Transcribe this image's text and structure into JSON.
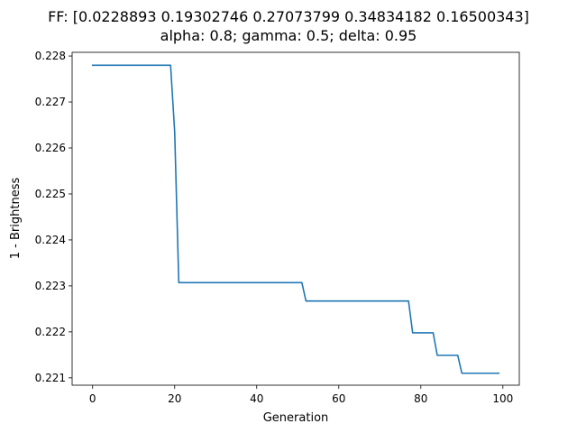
{
  "chart_data": {
    "type": "line",
    "title": "FF: [0.0228893  0.19302746 0.27073799 0.34834182 0.16500343]",
    "subtitle": "alpha: 0.8; gamma: 0.5; delta: 0.95",
    "xlabel": "Generation",
    "ylabel": "1 - Brightness",
    "xlim": [
      -5,
      104
    ],
    "ylim": [
      0.22084,
      0.22808
    ],
    "xticks": [
      0,
      20,
      40,
      60,
      80,
      100
    ],
    "xtick_labels": [
      "0",
      "20",
      "40",
      "60",
      "80",
      "100"
    ],
    "yticks": [
      0.221,
      0.222,
      0.223,
      0.224,
      0.225,
      0.226,
      0.227,
      0.228
    ],
    "ytick_labels": [
      "0.221",
      "0.222",
      "0.223",
      "0.224",
      "0.225",
      "0.226",
      "0.227",
      "0.228"
    ],
    "grid": false,
    "series": [
      {
        "color": "#1f77b4",
        "x": [
          0,
          19,
          20,
          21,
          51,
          52,
          77,
          78,
          83,
          84,
          89,
          90,
          99
        ],
        "y": [
          0.2278,
          0.2278,
          0.22635,
          0.22307,
          0.22307,
          0.22267,
          0.22267,
          0.22198,
          0.22198,
          0.22149,
          0.22149,
          0.2211,
          0.2211
        ]
      }
    ]
  }
}
